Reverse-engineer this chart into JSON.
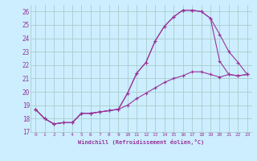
{
  "xlabel": "Windchill (Refroidissement éolien,°C)",
  "bg_color": "#cceeff",
  "grid_color": "#aacccc",
  "line_color": "#993399",
  "xlim": [
    -0.5,
    23.5
  ],
  "ylim": [
    17,
    26.5
  ],
  "yticks": [
    17,
    18,
    19,
    20,
    21,
    22,
    23,
    24,
    25,
    26
  ],
  "xticks": [
    0,
    1,
    2,
    3,
    4,
    5,
    6,
    7,
    8,
    9,
    10,
    11,
    12,
    13,
    14,
    15,
    16,
    17,
    18,
    19,
    20,
    21,
    22,
    23
  ],
  "series1_x": [
    0,
    1,
    2,
    3,
    4,
    5,
    6,
    7,
    8,
    9,
    10,
    11,
    12,
    13,
    14,
    15,
    16,
    17,
    18,
    19,
    20,
    21,
    22,
    23
  ],
  "series1_y": [
    18.7,
    18.0,
    17.6,
    17.7,
    17.7,
    18.4,
    18.4,
    18.5,
    18.6,
    18.7,
    19.9,
    21.4,
    22.2,
    23.8,
    24.9,
    25.6,
    26.1,
    26.1,
    26.0,
    25.5,
    24.3,
    23.0,
    22.2,
    21.3
  ],
  "series2_x": [
    0,
    1,
    2,
    3,
    4,
    5,
    6,
    7,
    8,
    9,
    10,
    11,
    12,
    13,
    14,
    15,
    16,
    17,
    18,
    19,
    20,
    21,
    22,
    23
  ],
  "series2_y": [
    18.7,
    18.0,
    17.6,
    17.7,
    17.7,
    18.4,
    18.4,
    18.5,
    18.6,
    18.7,
    19.9,
    21.4,
    22.2,
    23.8,
    24.9,
    25.6,
    26.1,
    26.1,
    26.0,
    25.5,
    22.3,
    21.3,
    21.2,
    21.3
  ],
  "series3_x": [
    0,
    1,
    2,
    3,
    4,
    5,
    6,
    7,
    8,
    9,
    10,
    11,
    12,
    13,
    14,
    15,
    16,
    17,
    18,
    19,
    20,
    21,
    22,
    23
  ],
  "series3_y": [
    18.7,
    18.0,
    17.6,
    17.7,
    17.7,
    18.4,
    18.4,
    18.5,
    18.6,
    18.7,
    19.0,
    19.5,
    19.9,
    20.3,
    20.7,
    21.0,
    21.2,
    21.5,
    21.5,
    21.3,
    21.1,
    21.3,
    21.2,
    21.3
  ],
  "marker": "+",
  "markersize": 3,
  "linewidth": 0.8
}
